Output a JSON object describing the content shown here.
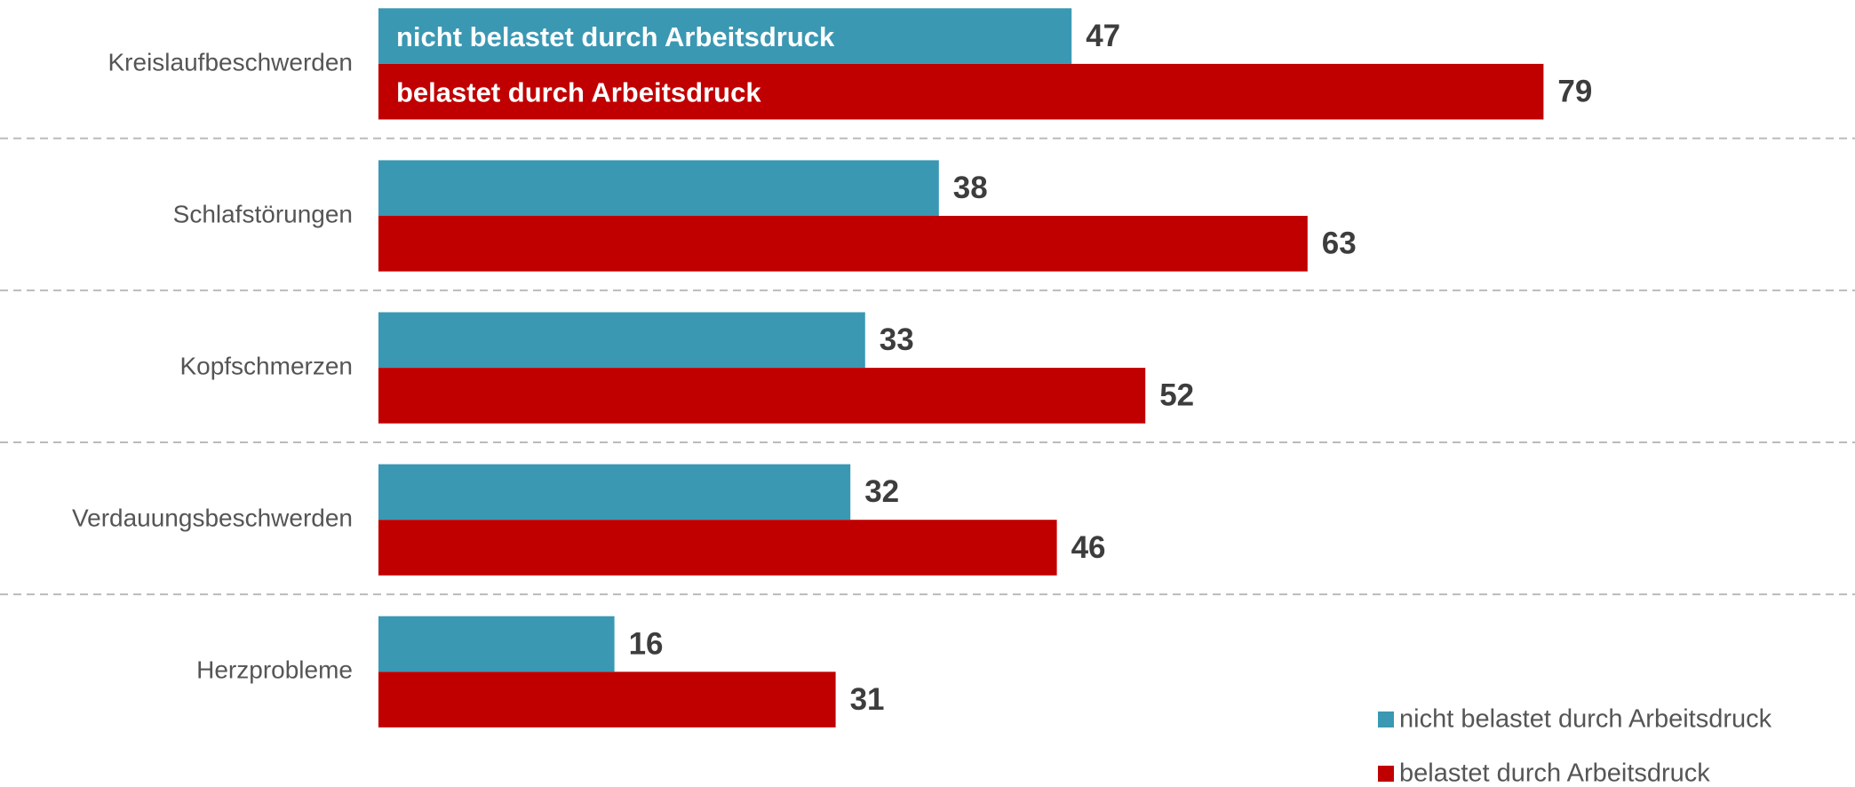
{
  "chart_data": {
    "type": "bar",
    "orientation": "horizontal",
    "categories": [
      "Kreislaufbeschwerden",
      "Schlafstörungen",
      "Kopfschmerzen",
      "Verdauungsbeschwerden",
      "Herzprobleme"
    ],
    "series": [
      {
        "name": "nicht belastet durch Arbeitsdruck",
        "color": "#3a98b3",
        "values": [
          47,
          38,
          33,
          32,
          16
        ]
      },
      {
        "name": "belastet durch Arbeitsdruck",
        "color": "#c00000",
        "values": [
          79,
          63,
          52,
          46,
          31
        ]
      }
    ],
    "legend": "bottom-right"
  }
}
